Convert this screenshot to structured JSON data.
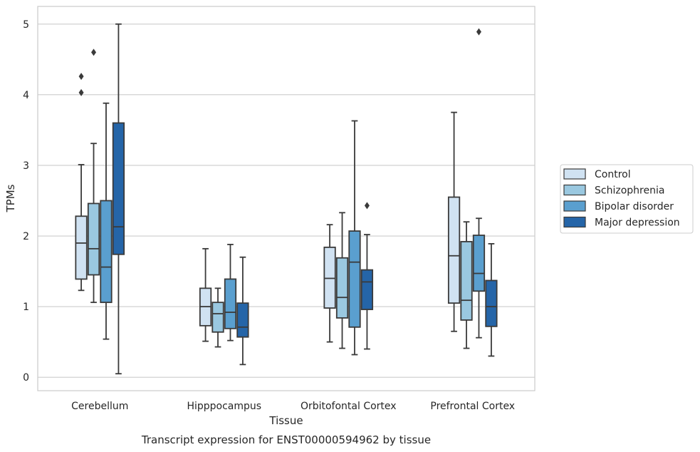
{
  "caption": "Transcript expression for ENST00000594962 by tissue",
  "chart_data": {
    "type": "boxplot",
    "title": "",
    "xlabel": "Tissue",
    "ylabel": "TPMs",
    "ylim": [
      -0.19,
      5.25
    ],
    "yticks": [
      0,
      1,
      2,
      3,
      4,
      5
    ],
    "grid": "horizontal",
    "legend_placement": "outside-right",
    "categories": [
      "Cerebellum",
      "Hipppocampus",
      "Orbitofontal Cortex",
      "Prefrontal Cortex"
    ],
    "series": [
      {
        "name": "Control",
        "color": "#d0e2f2",
        "boxes": [
          {
            "whisker_low": 1.23,
            "q1": 1.39,
            "median": 1.9,
            "q3": 2.28,
            "whisker_high": 3.01,
            "outliers": [
              4.03,
              4.26
            ]
          },
          {
            "whisker_low": 0.51,
            "q1": 0.73,
            "median": 1.0,
            "q3": 1.26,
            "whisker_high": 1.82,
            "outliers": []
          },
          {
            "whisker_low": 0.5,
            "q1": 0.98,
            "median": 1.4,
            "q3": 1.84,
            "whisker_high": 2.16,
            "outliers": []
          },
          {
            "whisker_low": 0.65,
            "q1": 1.05,
            "median": 1.72,
            "q3": 2.55,
            "whisker_high": 3.75,
            "outliers": []
          }
        ]
      },
      {
        "name": "Schizophrenia",
        "color": "#9ac8e0",
        "boxes": [
          {
            "whisker_low": 1.06,
            "q1": 1.45,
            "median": 1.82,
            "q3": 2.46,
            "whisker_high": 3.31,
            "outliers": [
              4.6
            ]
          },
          {
            "whisker_low": 0.43,
            "q1": 0.64,
            "median": 0.9,
            "q3": 1.06,
            "whisker_high": 1.26,
            "outliers": []
          },
          {
            "whisker_low": 0.41,
            "q1": 0.84,
            "median": 1.13,
            "q3": 1.69,
            "whisker_high": 2.33,
            "outliers": []
          },
          {
            "whisker_low": 0.41,
            "q1": 0.81,
            "median": 1.09,
            "q3": 1.92,
            "whisker_high": 2.2,
            "outliers": []
          }
        ]
      },
      {
        "name": "Bipolar disorder",
        "color": "#5a9fcf",
        "boxes": [
          {
            "whisker_low": 0.54,
            "q1": 1.06,
            "median": 1.56,
            "q3": 2.5,
            "whisker_high": 3.88,
            "outliers": []
          },
          {
            "whisker_low": 0.52,
            "q1": 0.69,
            "median": 0.92,
            "q3": 1.39,
            "whisker_high": 1.88,
            "outliers": []
          },
          {
            "whisker_low": 0.32,
            "q1": 0.71,
            "median": 1.63,
            "q3": 2.07,
            "whisker_high": 3.63,
            "outliers": []
          },
          {
            "whisker_low": 0.56,
            "q1": 1.22,
            "median": 1.47,
            "q3": 2.01,
            "whisker_high": 2.25,
            "outliers": [
              4.89
            ]
          }
        ]
      },
      {
        "name": "Major depression",
        "color": "#2565a8",
        "boxes": [
          {
            "whisker_low": 0.05,
            "q1": 1.74,
            "median": 2.13,
            "q3": 3.6,
            "whisker_high": 5.0,
            "outliers": []
          },
          {
            "whisker_low": 0.18,
            "q1": 0.57,
            "median": 0.71,
            "q3": 1.05,
            "whisker_high": 1.7,
            "outliers": []
          },
          {
            "whisker_low": 0.4,
            "q1": 0.96,
            "median": 1.35,
            "q3": 1.52,
            "whisker_high": 2.02,
            "outliers": [
              2.43
            ]
          },
          {
            "whisker_low": 0.3,
            "q1": 0.72,
            "median": 1.0,
            "q3": 1.37,
            "whisker_high": 1.89,
            "outliers": []
          }
        ]
      }
    ]
  }
}
